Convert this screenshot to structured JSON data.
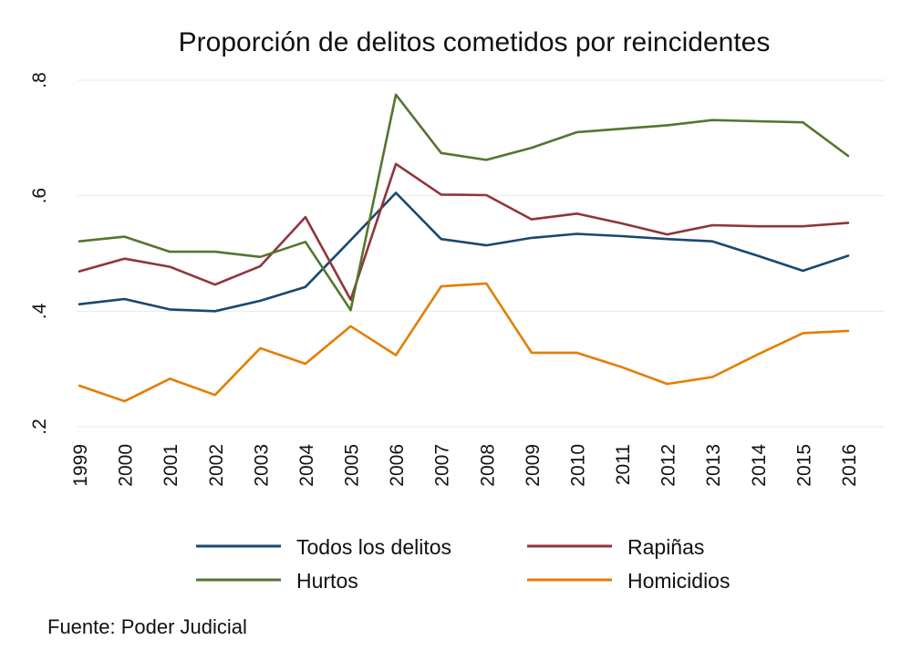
{
  "chart_data": {
    "type": "line",
    "title": "Proporción de delitos cometidos por reincidentes",
    "xlabel": "",
    "ylabel": "",
    "ylim": [
      0.2,
      0.8
    ],
    "yticks": [
      0.2,
      0.4,
      0.6,
      0.8
    ],
    "ytick_labels": [
      ".2",
      ".4",
      ".6",
      ".8"
    ],
    "x": [
      "1999",
      "2000",
      "2001",
      "2002",
      "2003",
      "2004",
      "2005",
      "2006",
      "2007",
      "2008",
      "2009",
      "2010",
      "2011",
      "2012",
      "2013",
      "2014",
      "2015",
      "2016"
    ],
    "grid": true,
    "legend_position": "bottom",
    "series": [
      {
        "name": "Todos los delitos",
        "color": "#1a476f",
        "values": [
          0.412,
          0.421,
          0.403,
          0.4,
          0.418,
          0.442,
          0.523,
          0.605,
          0.525,
          0.514,
          0.527,
          0.534,
          0.53,
          0.525,
          0.521,
          0.496,
          0.47,
          0.496
        ]
      },
      {
        "name": "Rapiñas",
        "color": "#90353b",
        "values": [
          0.469,
          0.491,
          0.477,
          0.446,
          0.478,
          0.563,
          0.42,
          0.655,
          0.602,
          0.601,
          0.559,
          0.569,
          0.552,
          0.533,
          0.549,
          0.547,
          0.547,
          0.553
        ]
      },
      {
        "name": "Hurtos",
        "color": "#55752f",
        "values": [
          0.521,
          0.529,
          0.503,
          0.503,
          0.494,
          0.52,
          0.402,
          0.775,
          0.674,
          0.662,
          0.683,
          0.71,
          0.716,
          0.722,
          0.731,
          0.729,
          0.727,
          0.669
        ]
      },
      {
        "name": "Homicidios",
        "color": "#e37e00",
        "values": [
          0.271,
          0.244,
          0.283,
          0.255,
          0.336,
          0.309,
          0.374,
          0.324,
          0.443,
          0.448,
          0.328,
          0.328,
          0.303,
          0.274,
          0.286,
          0.325,
          0.362,
          0.366
        ]
      }
    ]
  },
  "source_text": "Fuente: Poder Judicial"
}
